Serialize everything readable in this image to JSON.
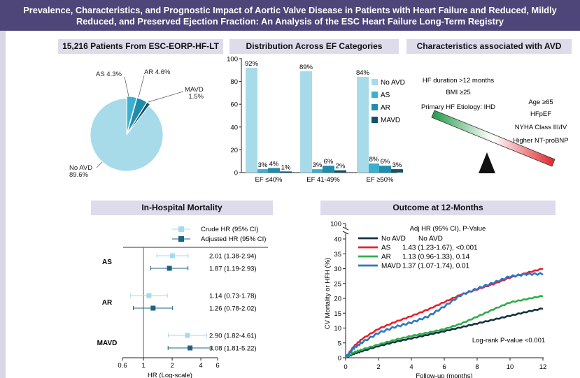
{
  "title": {
    "line1": "Prevalence, Characteristics, and Prognostic Impact of Aortic Valve Disease in Patients with Heart Failure and Reduced, Mildly",
    "line2": "Reduced, and Preserved Ejection Fraction: An Analysis of the ESC Heart Failure Long-Term Registry"
  },
  "panels": {
    "pie_header": "15,216 Patients From ESC-EORP-HF-LT",
    "bar_header": "Distribution Across EF Categories",
    "avd_header": "Characteristics associated with AVD",
    "mortality_header": "In-Hospital Mortality",
    "outcome_header": "Outcome at 12-Months"
  },
  "colors": {
    "banner": "#4e4579",
    "header_bg": "#dedcea",
    "no_avd": "#a8dbea",
    "as": "#3ab0d1",
    "ar": "#1f8cad",
    "mavd": "#13536a",
    "km_no_avd": "#14343f",
    "km_as": "#e8202a",
    "km_ar": "#2fae4a",
    "km_mavd": "#2a78c8",
    "forest_crude": "#9fdcee",
    "forest_adjusted": "#1f6283"
  },
  "avd_characteristics": {
    "left": [
      "HF duration >12 months",
      "BMI ≥25",
      "Primary HF Etiology: IHD"
    ],
    "right": [
      "Age ≥65",
      "HFpEF",
      "NYHA Class III/IV",
      "Higher NT-proBNP"
    ]
  },
  "chart_data": [
    {
      "type": "pie",
      "labels": [
        "No AVD",
        "AS",
        "AR",
        "MAVD"
      ],
      "values": [
        89.6,
        4.3,
        4.6,
        1.5
      ],
      "slice_labels": [
        "No AVD\n89.6%",
        "AS 4.3%",
        "AR 4.6%",
        "MAVD\n1.5%"
      ]
    },
    {
      "type": "bar",
      "categories": [
        "EF ≤40%",
        "EF 41-49%",
        "EF ≥50%"
      ],
      "series": [
        {
          "name": "No AVD",
          "values": [
            92,
            89,
            84
          ],
          "labels": [
            "92%",
            "89%",
            "84%"
          ]
        },
        {
          "name": "AS",
          "values": [
            3,
            3,
            8
          ],
          "labels": [
            "3%",
            "3%",
            "8%"
          ]
        },
        {
          "name": "AR",
          "values": [
            4,
            6,
            6
          ],
          "labels": [
            "4%",
            "6%",
            "6%"
          ]
        },
        {
          "name": "MAVD",
          "values": [
            1,
            2,
            3
          ],
          "labels": [
            "1%",
            "2%",
            "3%"
          ]
        }
      ],
      "ylim": [
        0,
        100
      ],
      "yticks": [
        "0",
        "20",
        "40",
        "60",
        "80",
        "100"
      ],
      "legend": "right"
    },
    {
      "type": "scatter",
      "subtype": "forest",
      "xlabel": "HR (Log-scale)",
      "xticks": [
        "0.6",
        "1",
        "2",
        "4",
        "6"
      ],
      "xtick_values": [
        0.6,
        1,
        2,
        4,
        6
      ],
      "xscale": "log",
      "legend": [
        "Crude HR (95% CI)",
        "Adjusted HR (95% CI)"
      ],
      "groups": [
        {
          "name": "AS",
          "rows": [
            {
              "kind": "crude",
              "hr": 2.01,
              "lo": 1.38,
              "hi": 2.94,
              "label": "2.01 (1.38-2.94)"
            },
            {
              "kind": "adjusted",
              "hr": 1.87,
              "lo": 1.19,
              "hi": 2.93,
              "label": "1.87 (1.19-2.93)"
            }
          ]
        },
        {
          "name": "AR",
          "rows": [
            {
              "kind": "crude",
              "hr": 1.14,
              "lo": 0.73,
              "hi": 1.78,
              "label": "1.14 (0.73-1.78)"
            },
            {
              "kind": "adjusted",
              "hr": 1.26,
              "lo": 0.78,
              "hi": 2.02,
              "label": "1.26 (0.78-2.02)"
            }
          ]
        },
        {
          "name": "MAVD",
          "rows": [
            {
              "kind": "crude",
              "hr": 2.9,
              "lo": 1.82,
              "hi": 4.61,
              "label": "2.90 (1.82-4.61)"
            },
            {
              "kind": "adjusted",
              "hr": 3.08,
              "lo": 1.81,
              "hi": 5.22,
              "label": "3.08 (1.81-5.22)"
            }
          ]
        }
      ]
    },
    {
      "type": "line",
      "xlabel": "Follow-up (months)",
      "ylabel": "CV Mortality or HFH (%)",
      "xlim": [
        0,
        12
      ],
      "ylim": [
        0,
        100
      ],
      "xticks": [
        "0",
        "2",
        "4",
        "6",
        "8",
        "10",
        "12"
      ],
      "yticks": [
        "0",
        "5",
        "10",
        "15",
        "20",
        "25",
        "30",
        "35",
        "40",
        "100"
      ],
      "axis_break": [
        42,
        99
      ],
      "legend_title": "Adj HR (95% CI), P-Value",
      "legend": [
        {
          "name": "No AVD",
          "hr": "No AVD"
        },
        {
          "name": "AS",
          "hr": "1.43 (1.23-1.67), <0.001"
        },
        {
          "name": "AR",
          "hr": "1.13 (0.96-1.33), 0.14"
        },
        {
          "name": "MAVD",
          "hr": "1.37 (1.07-1.74), 0.01"
        }
      ],
      "annotation": "Log-rank P-value <0.001",
      "x": [
        0,
        0.5,
        1,
        2,
        3,
        4,
        5,
        6,
        7,
        8,
        9,
        10,
        11,
        12
      ],
      "series": [
        {
          "name": "No AVD",
          "values": [
            0,
            1.3,
            2.2,
            3.9,
            5.3,
            6.5,
            7.7,
            8.9,
            10.2,
            11.5,
            12.8,
            14.1,
            15.4,
            16.6
          ]
        },
        {
          "name": "AS",
          "values": [
            0,
            3.8,
            6.3,
            9.7,
            12.0,
            14.0,
            16.2,
            18.7,
            21.2,
            23.0,
            24.8,
            27.0,
            28.5,
            30.0
          ]
        },
        {
          "name": "AR",
          "values": [
            0,
            1.8,
            2.7,
            4.4,
            6.0,
            7.3,
            8.4,
            9.6,
            11.4,
            13.8,
            16.3,
            18.6,
            19.7,
            20.8
          ]
        },
        {
          "name": "MAVD",
          "values": [
            0,
            3.2,
            5.1,
            8.3,
            10.3,
            11.8,
            13.8,
            17.2,
            21.0,
            23.2,
            25.2,
            27.3,
            28.1,
            28.2
          ]
        }
      ]
    }
  ]
}
